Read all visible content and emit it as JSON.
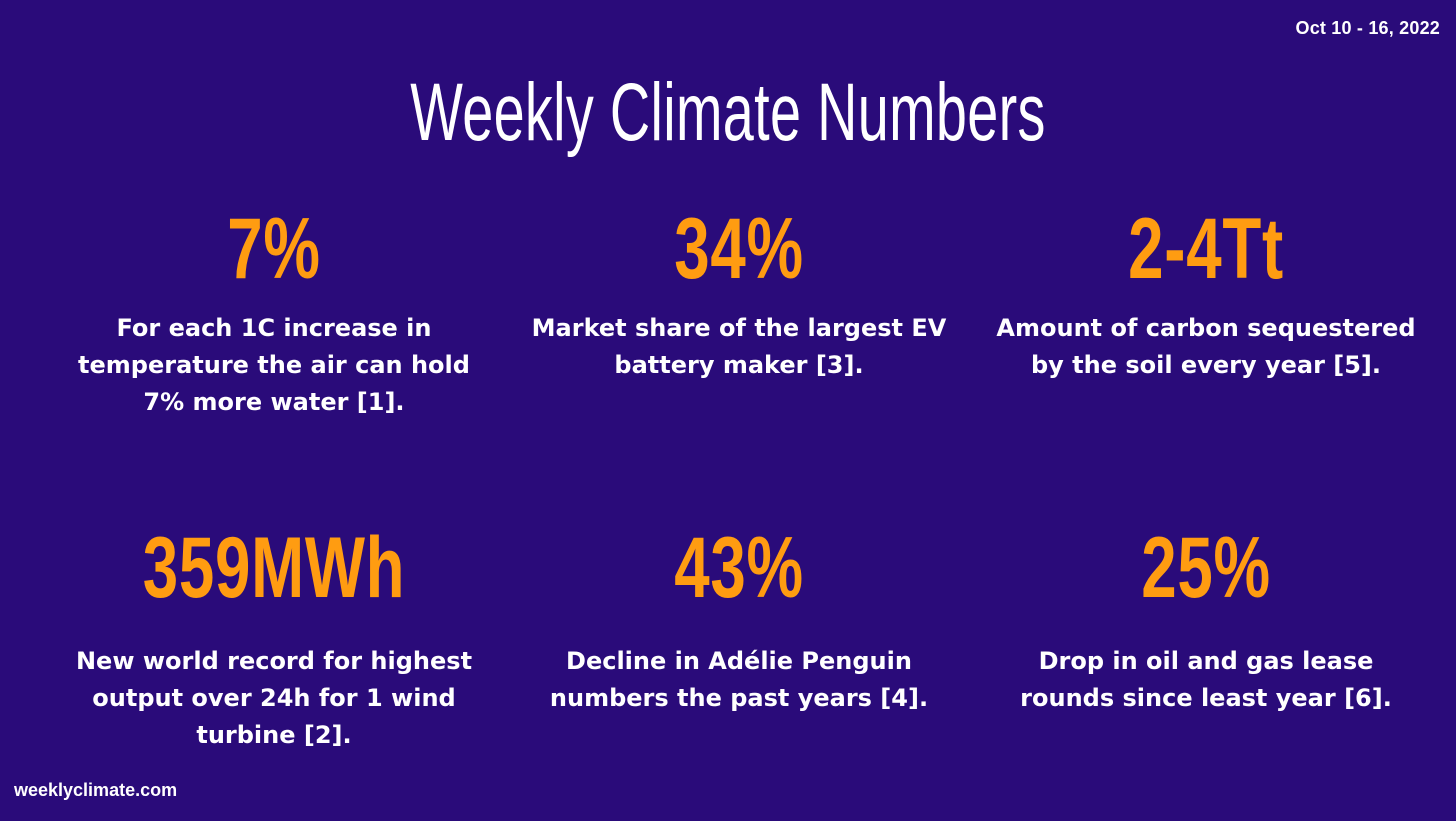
{
  "header": {
    "date_range": "Oct 10 - 16, 2022",
    "title": "Weekly Climate Numbers"
  },
  "stats": [
    {
      "value": "7%",
      "description": "For each 1C increase in temperature the air can hold 7% more water [1]."
    },
    {
      "value": "34%",
      "description": "Market share of the largest EV battery maker [3]."
    },
    {
      "value": "2-4Tt",
      "description": "Amount of carbon sequestered by the soil every year [5]."
    },
    {
      "value": "359MWh",
      "description": "New world record for highest output over 24h for 1 wind turbine [2]."
    },
    {
      "value": "43%",
      "description": "Decline in Adélie Penguin numbers the past years [4]."
    },
    {
      "value": "25%",
      "description": "Drop in oil and gas lease rounds since least year [6]."
    }
  ],
  "footer": {
    "website": "weeklyclimate.com"
  },
  "colors": {
    "background": "#2a0b7a",
    "accent": "#ff9c11",
    "text": "#ffffff"
  }
}
